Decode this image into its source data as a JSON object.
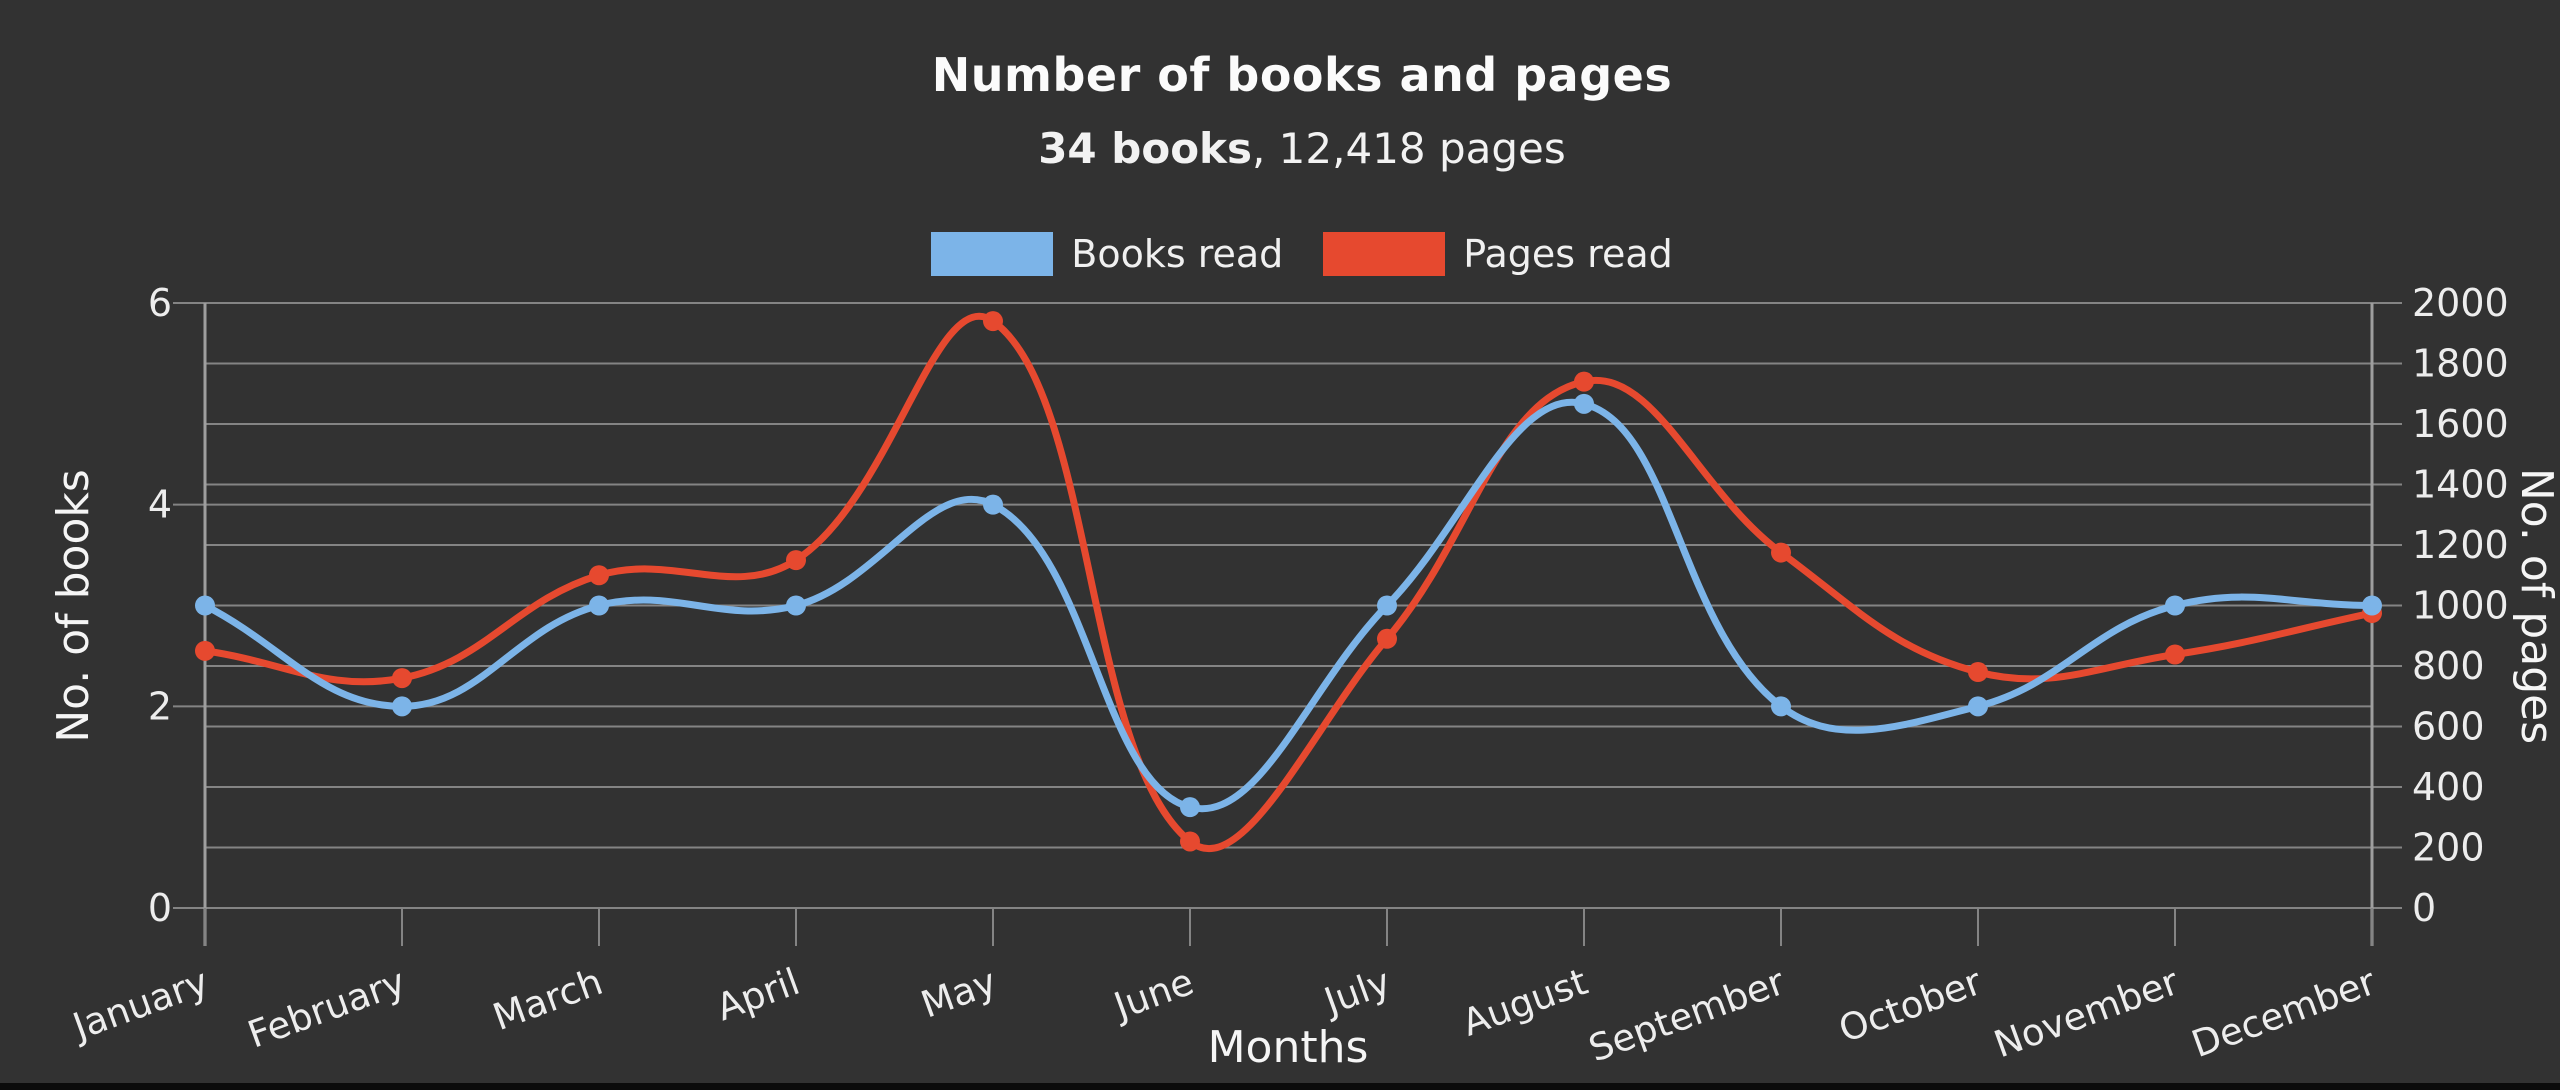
{
  "header": {
    "title": "Number of books and pages",
    "subtitle_bold": "34 books",
    "subtitle_rest": ", 12,418 pages"
  },
  "chart_data": {
    "type": "line",
    "title": "Number of books and pages",
    "subtitle": "34 books, 12,418 pages",
    "categories": [
      "January",
      "February",
      "March",
      "April",
      "May",
      "June",
      "July",
      "August",
      "September",
      "October",
      "November",
      "December"
    ],
    "series": [
      {
        "name": "Books read",
        "axis": "left",
        "color": "#7CB4E8",
        "values": [
          3,
          2,
          3,
          3,
          4,
          1,
          3,
          5,
          2,
          2,
          3,
          3
        ]
      },
      {
        "name": "Pages read",
        "axis": "right",
        "color": "#E6492F",
        "values": [
          850,
          760,
          1100,
          1150,
          1940,
          220,
          890,
          1740,
          1175,
          780,
          838,
          975
        ]
      }
    ],
    "totals": {
      "books": 34,
      "pages": 12418
    },
    "left_axis": {
      "label": "No. of books",
      "range": [
        0,
        6
      ],
      "ticks": [
        0,
        2,
        4,
        6
      ]
    },
    "right_axis": {
      "label": "No. of pages",
      "range": [
        0,
        2000
      ],
      "tick_step": 200
    },
    "x_axis": {
      "label": "Months"
    },
    "grid": true,
    "legend_position": "top",
    "line_tension": 0.4,
    "background": "#323232",
    "gridline_color": "#848484",
    "axis_line_color": "#9e9e9e",
    "text_color": "#ededed"
  }
}
